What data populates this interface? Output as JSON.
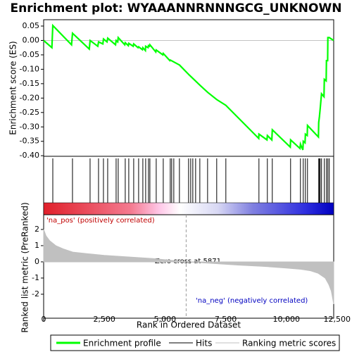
{
  "chart_data": [
    {
      "type": "line",
      "title": "Enrichment plot: WYAAANNRNNNGCG_UNKNOWN",
      "y_label": "Enrichment score (ES)",
      "series": [
        {
          "name": "Enrichment profile",
          "color": "#00ff00",
          "x": [
            0,
            340,
            377,
            1150,
            1188,
            1880,
            1913,
            2230,
            2261,
            2440,
            2464,
            2610,
            2638,
            2960,
            2986,
            3050,
            3072,
            3340,
            3362,
            3490,
            3507,
            3690,
            3710,
            3890,
            3913,
            4070,
            4087,
            4190,
            4203,
            4300,
            4319,
            4360,
            4377,
            4620,
            4638,
            4910,
            4928,
            5200,
            5217,
            5594,
            6000,
            6435,
            6754,
            7130,
            7507,
            8860,
            8870,
            9200,
            9217,
            9400,
            9420,
            10160,
            10174,
            10560,
            10580,
            10680,
            10696,
            10770,
            10783,
            10860,
            10870,
            11320,
            11333,
            11362,
            11391,
            11449,
            11550,
            11565,
            11640,
            11652,
            11700,
            11710,
            11768,
            11950
          ],
          "values": [
            0,
            -0.025,
            0.052,
            -0.015,
            0.025,
            -0.03,
            0,
            -0.02,
            -0.005,
            -0.012,
            0.005,
            -0.005,
            0.008,
            -0.015,
            0,
            -0.005,
            0.01,
            -0.015,
            -0.008,
            -0.018,
            -0.01,
            -0.02,
            -0.012,
            -0.025,
            -0.022,
            -0.032,
            -0.025,
            -0.035,
            -0.02,
            -0.025,
            -0.018,
            -0.02,
            -0.015,
            -0.04,
            -0.033,
            -0.05,
            -0.045,
            -0.07,
            -0.068,
            -0.085,
            -0.12,
            -0.155,
            -0.18,
            -0.205,
            -0.225,
            -0.34,
            -0.325,
            -0.345,
            -0.33,
            -0.345,
            -0.31,
            -0.37,
            -0.345,
            -0.375,
            -0.36,
            -0.38,
            -0.35,
            -0.355,
            -0.325,
            -0.33,
            -0.295,
            -0.335,
            -0.285,
            -0.265,
            -0.24,
            -0.185,
            -0.195,
            -0.135,
            -0.14,
            -0.07,
            -0.07,
            0.01,
            0.01,
            0
          ]
        }
      ],
      "xlim": [
        0,
        11950
      ],
      "ylim": [
        -0.402,
        0.072
      ],
      "yticks": [
        {
          "value": 0.05,
          "label": "0.05"
        },
        {
          "value": 0,
          "label": "0.00"
        },
        {
          "value": -0.05,
          "label": "-0.05"
        },
        {
          "value": -0.1,
          "label": "-0.10"
        },
        {
          "value": -0.15,
          "label": "-0.15"
        },
        {
          "value": -0.2,
          "label": "-0.20"
        },
        {
          "value": -0.25,
          "label": "-0.25"
        },
        {
          "value": -0.3,
          "label": "-0.30"
        },
        {
          "value": -0.35,
          "label": "-0.35"
        },
        {
          "value": -0.4,
          "label": "-0.40"
        }
      ]
    },
    {
      "type": "rug",
      "series": [
        {
          "name": "Hits",
          "color": "#000000",
          "values": [
            377,
            1188,
            1913,
            2261,
            2464,
            2638,
            2986,
            3072,
            3362,
            3507,
            3710,
            3913,
            4087,
            4203,
            4319,
            4377,
            4638,
            4928,
            5217,
            5275,
            5362,
            5594,
            5971,
            6058,
            6145,
            6261,
            6435,
            6754,
            7130,
            7507,
            8870,
            9217,
            9420,
            10174,
            10580,
            10696,
            10783,
            10870,
            11333,
            11362,
            11391,
            11449,
            11565,
            11652,
            11710,
            11768
          ]
        }
      ]
    },
    {
      "type": "area",
      "y_label": "Ranked list metric (PreRanked)",
      "x_label": "Rank in Ordered Dataset",
      "series": [
        {
          "name": "Ranking metric scores",
          "color": "#c0c0c0",
          "x": [
            0,
            100,
            250,
            500,
            800,
            1200,
            1800,
            2500,
            3500,
            4500,
            5200,
            5871,
            7000,
            8000,
            9000,
            10000,
            10600,
            11000,
            11300,
            11600,
            11750,
            11850,
            11950
          ],
          "values": [
            2.0,
            1.6,
            1.3,
            1.0,
            0.8,
            0.6,
            0.5,
            0.4,
            0.3,
            0.2,
            0.1,
            0,
            -0.1,
            -0.2,
            -0.27,
            -0.38,
            -0.46,
            -0.55,
            -0.7,
            -1.0,
            -1.4,
            -1.8,
            -2.6
          ]
        }
      ],
      "xlim": [
        0,
        11950
      ],
      "ylim": [
        -3.48,
        2.91
      ],
      "yticks": [
        2,
        1,
        0,
        -1,
        -2
      ],
      "xticks": [
        0,
        {
          "value": 2500,
          "label": "2,500"
        },
        {
          "value": 5000,
          "label": "5,000"
        },
        {
          "value": 7500,
          "label": "7,500"
        },
        {
          "value": 10000,
          "label": "10,000"
        },
        {
          "value": 12500,
          "label": "12,500"
        }
      ],
      "zero_cross": 5871,
      "zero_cross_label": "Zero cross at 5871",
      "pos_label": "'na_pos' (positively correlated)",
      "neg_label": "'na_neg' (negatively correlated)"
    }
  ]
}
